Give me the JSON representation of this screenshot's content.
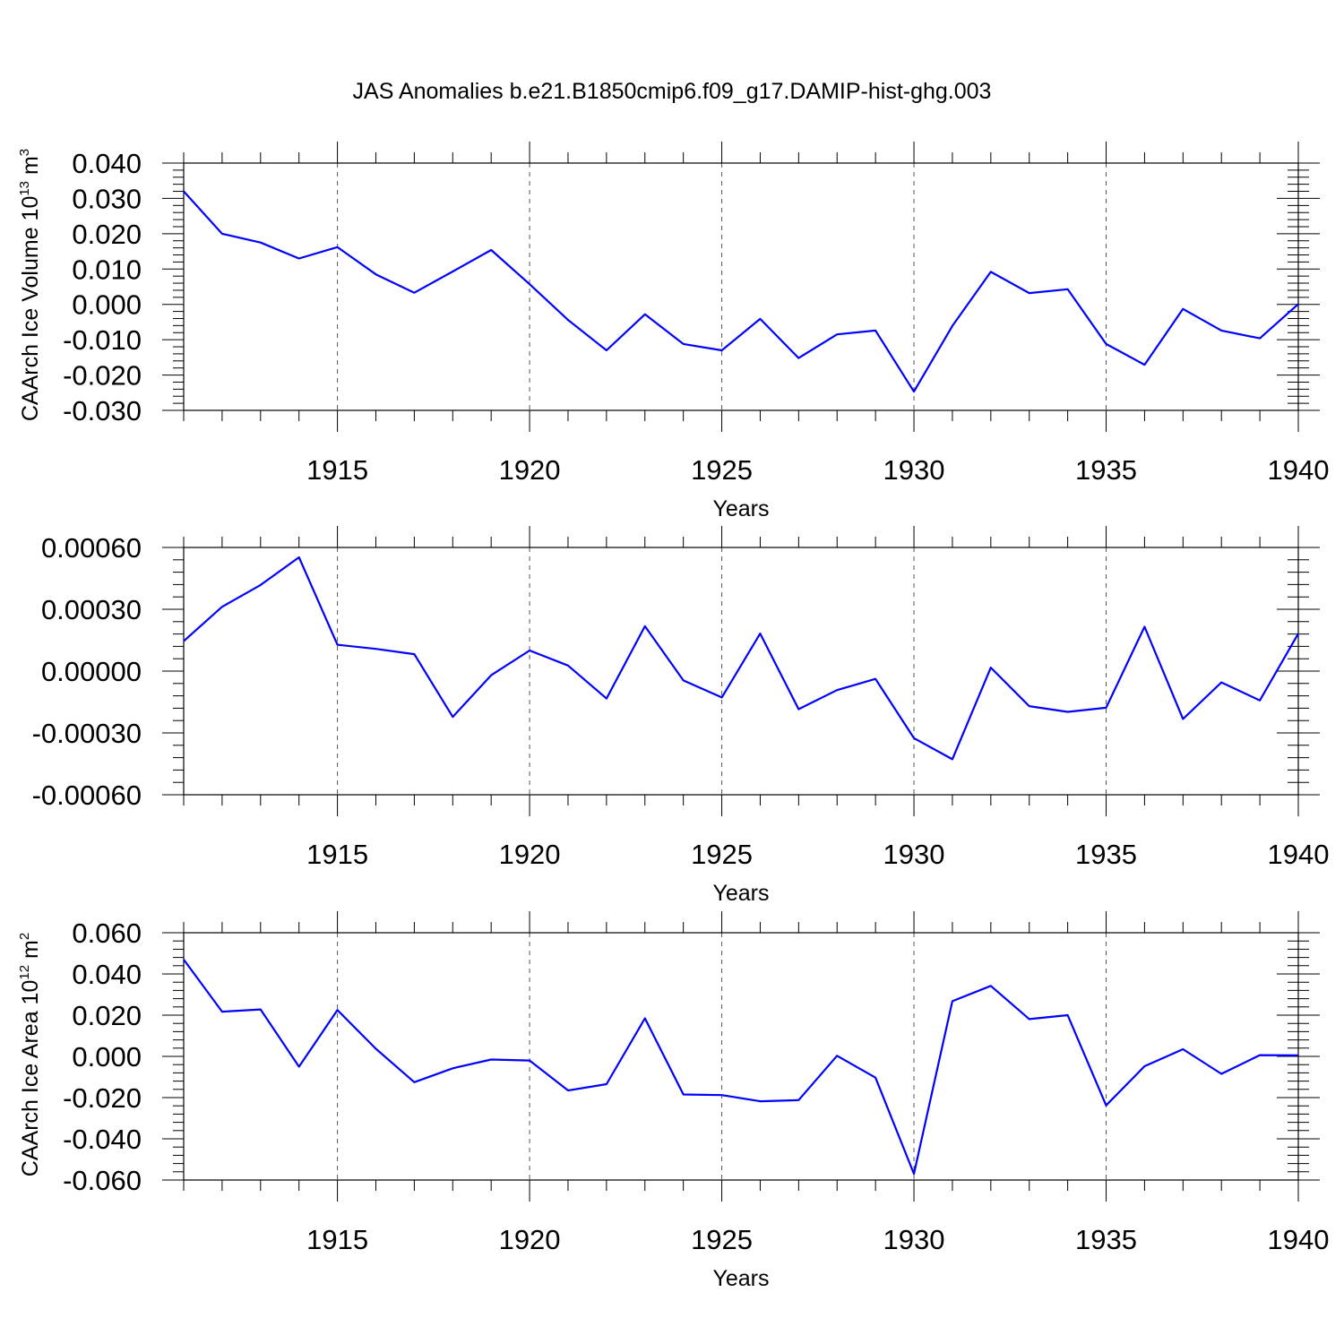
{
  "title": "JAS Anomalies b.e21.B1850cmip6.f09_g17.DAMIP-hist-ghg.003",
  "chart_data": [
    {
      "type": "line",
      "title": "",
      "xlabel": "Years",
      "ylabel": "CAArch Ice Volume 10",
      "ylabel_exp": "13",
      "ylabel_unit": "m",
      "ylabel_unit_exp": "3",
      "xlim": [
        1911,
        1940
      ],
      "ylim": [
        -0.03,
        0.04
      ],
      "grid": "vertical dashed at major x ticks",
      "x_ticks": [
        1915,
        1920,
        1925,
        1930,
        1935,
        1940
      ],
      "y_ticks": [
        0.04,
        0.03,
        0.02,
        0.01,
        0.0,
        -0.01,
        -0.02,
        -0.03
      ],
      "y_tick_labels": [
        "0.040",
        "0.030",
        "0.020",
        "0.010",
        "0.000",
        "-0.010",
        "-0.020",
        "-0.030"
      ],
      "color": "#0000ff",
      "x": [
        1911,
        1912,
        1913,
        1914,
        1915,
        1916,
        1917,
        1918,
        1919,
        1920,
        1921,
        1922,
        1923,
        1924,
        1925,
        1926,
        1927,
        1928,
        1929,
        1930,
        1931,
        1932,
        1933,
        1934,
        1935,
        1936,
        1937,
        1938,
        1939,
        1940
      ],
      "values": [
        0.032,
        0.02,
        0.0175,
        0.013,
        0.0162,
        0.0085,
        0.0033,
        0.0093,
        0.0154,
        0.0057,
        -0.0044,
        -0.013,
        -0.0028,
        -0.0112,
        -0.013,
        -0.0041,
        -0.0152,
        -0.0085,
        -0.0074,
        -0.0247,
        -0.0061,
        0.0092,
        0.0032,
        0.0043,
        -0.0112,
        -0.0171,
        -0.0013,
        -0.0074,
        -0.0096,
        0.0001
      ]
    },
    {
      "type": "line",
      "title": "",
      "xlabel": "Years",
      "ylabel": "",
      "xlim": [
        1911,
        1940
      ],
      "ylim": [
        -0.0006,
        0.0006
      ],
      "grid": "vertical dashed at major x ticks",
      "x_ticks": [
        1915,
        1920,
        1925,
        1930,
        1935,
        1940
      ],
      "y_ticks": [
        0.0006,
        0.0003,
        0.0,
        -0.0003,
        -0.0006
      ],
      "y_tick_labels": [
        "0.00060",
        "0.00030",
        "0.00000",
        "-0.00030",
        "-0.00060"
      ],
      "color": "#0000ff",
      "x": [
        1911,
        1912,
        1913,
        1914,
        1915,
        1916,
        1917,
        1918,
        1919,
        1920,
        1921,
        1922,
        1923,
        1924,
        1925,
        1926,
        1927,
        1928,
        1929,
        1930,
        1931,
        1932,
        1933,
        1934,
        1935,
        1936,
        1937,
        1938,
        1939,
        1940
      ],
      "values": [
        0.000145,
        0.000312,
        0.000418,
        0.000552,
        0.000128,
        0.000108,
        8.2e-05,
        -0.000222,
        -2e-05,
        0.0001,
        2.7e-05,
        -0.000133,
        0.000218,
        -4.5e-05,
        -0.000128,
        0.000182,
        -0.000185,
        -9.2e-05,
        -3.8e-05,
        -0.000325,
        -0.000428,
        1.7e-05,
        -0.00017,
        -0.000198,
        -0.000178,
        0.000215,
        -0.000232,
        -5.5e-05,
        -0.000142,
        0.000182
      ]
    },
    {
      "type": "line",
      "title": "",
      "xlabel": "Years",
      "ylabel": "CAArch Ice Area 10",
      "ylabel_exp": "12",
      "ylabel_unit": "m",
      "ylabel_unit_exp": "2",
      "xlim": [
        1911,
        1940
      ],
      "ylim": [
        -0.06,
        0.06
      ],
      "grid": "vertical dashed at major x ticks",
      "x_ticks": [
        1915,
        1920,
        1925,
        1930,
        1935,
        1940
      ],
      "y_ticks": [
        0.06,
        0.04,
        0.02,
        0.0,
        -0.02,
        -0.04,
        -0.06
      ],
      "y_tick_labels": [
        "0.060",
        "0.040",
        "0.020",
        "0.000",
        "-0.020",
        "-0.040",
        "-0.060"
      ],
      "color": "#0000ff",
      "x": [
        1911,
        1912,
        1913,
        1914,
        1915,
        1916,
        1917,
        1918,
        1919,
        1920,
        1921,
        1922,
        1923,
        1924,
        1925,
        1926,
        1927,
        1928,
        1929,
        1930,
        1931,
        1932,
        1933,
        1934,
        1935,
        1936,
        1937,
        1938,
        1939,
        1940
      ],
      "values": [
        0.047,
        0.0217,
        0.0228,
        -0.005,
        0.0225,
        0.0037,
        -0.0125,
        -0.0058,
        -0.0015,
        -0.002,
        -0.0165,
        -0.0135,
        0.0185,
        -0.0185,
        -0.0188,
        -0.0218,
        -0.0212,
        0.0003,
        -0.0103,
        -0.057,
        0.0268,
        0.0342,
        0.0181,
        0.02,
        -0.0238,
        -0.0048,
        0.0035,
        -0.0085,
        0.0006,
        0.0005
      ]
    }
  ]
}
